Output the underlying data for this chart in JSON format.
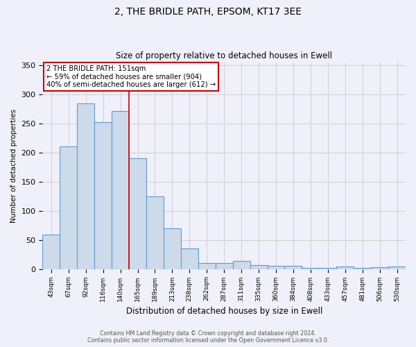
{
  "title": "2, THE BRIDLE PATH, EPSOM, KT17 3EE",
  "subtitle": "Size of property relative to detached houses in Ewell",
  "xlabel": "Distribution of detached houses by size in Ewell",
  "ylabel": "Number of detached properties",
  "footnote1": "Contains HM Land Registry data © Crown copyright and database right 2024.",
  "footnote2": "Contains public sector information licensed under the Open Government Licence v3.0.",
  "annotation_line1": "2 THE BRIDLE PATH: 151sqm",
  "annotation_line2": "← 59% of detached houses are smaller (904)",
  "annotation_line3": "40% of semi-detached houses are larger (612) →",
  "bar_labels": [
    "43sqm",
    "67sqm",
    "92sqm",
    "116sqm",
    "140sqm",
    "165sqm",
    "189sqm",
    "213sqm",
    "238sqm",
    "262sqm",
    "287sqm",
    "311sqm",
    "335sqm",
    "360sqm",
    "384sqm",
    "408sqm",
    "433sqm",
    "457sqm",
    "481sqm",
    "506sqm",
    "530sqm"
  ],
  "bar_values": [
    59,
    210,
    284,
    252,
    271,
    190,
    125,
    70,
    35,
    10,
    10,
    14,
    7,
    6,
    5,
    2,
    2,
    4,
    2,
    3,
    4
  ],
  "red_line_x": 4.5,
  "bar_color": "#cddaea",
  "bar_edge_color": "#5b9bd5",
  "grid_color": "#d0d0d0",
  "red_line_color": "#cc0000",
  "annotation_box_color": "#ffffff",
  "annotation_box_edge": "#cc0000",
  "background_color": "#f0f0fa",
  "ylim": [
    0,
    355
  ],
  "yticks": [
    0,
    50,
    100,
    150,
    200,
    250,
    300,
    350
  ]
}
